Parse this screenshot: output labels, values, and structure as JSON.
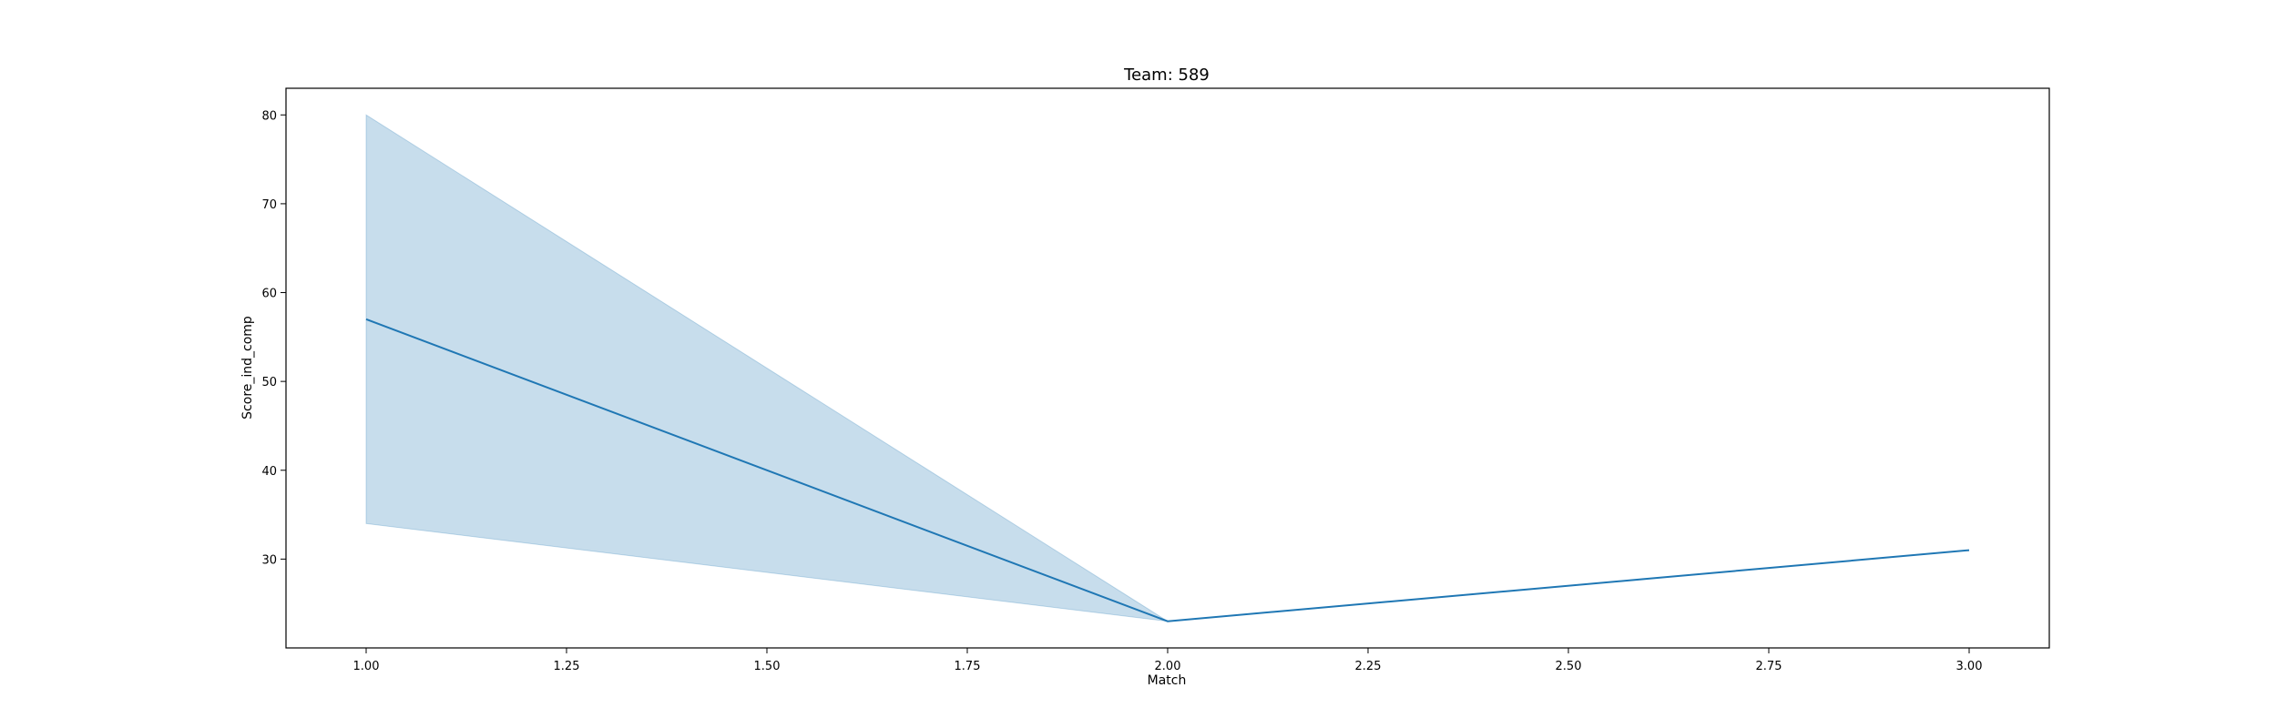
{
  "chart_data": {
    "type": "line",
    "title": "Team: 589",
    "xlabel": "Match",
    "ylabel": "Score_ind_comp",
    "xlim": [
      0.9,
      3.1
    ],
    "ylim": [
      20,
      83
    ],
    "x_ticks": [
      1.0,
      1.25,
      1.5,
      1.75,
      2.0,
      2.25,
      2.5,
      2.75,
      3.0
    ],
    "x_tick_labels": [
      "1.00",
      "1.25",
      "1.50",
      "1.75",
      "2.00",
      "2.25",
      "2.50",
      "2.75",
      "3.00"
    ],
    "y_ticks": [
      30,
      40,
      50,
      60,
      70,
      80
    ],
    "y_tick_labels": [
      "30",
      "40",
      "50",
      "60",
      "70",
      "80"
    ],
    "grid": false,
    "series": [
      {
        "x": [
          1,
          2,
          3
        ],
        "y": [
          57,
          23,
          31
        ],
        "color": "#1f77b4",
        "ci": [
          {
            "x": 1,
            "low": 34,
            "high": 80
          },
          {
            "x": 2,
            "low": 23,
            "high": 23
          },
          {
            "x": 3,
            "low": 31,
            "high": 31
          }
        ]
      }
    ]
  }
}
